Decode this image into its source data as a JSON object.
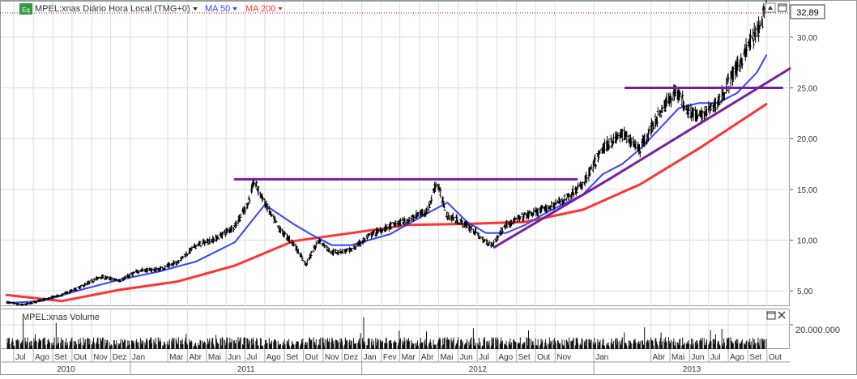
{
  "header": {
    "badge": "Eq",
    "symbol_label": "MPEL:xnas Diário Hora Local (TMG+0)",
    "ma50_label": "MA 50",
    "ma200_label": "MA 200",
    "last_price": "32,89"
  },
  "volume_panel": {
    "label": "MPEL:xnas Volume",
    "axis_tick": "20.000.000"
  },
  "colors": {
    "price": "#000000",
    "ma50": "#3344ff",
    "ma200": "#ff3333",
    "trendline": "#7a1f9c",
    "grid": "#dddddd",
    "last_price_line": "#aa0000"
  },
  "chart_data": [
    {
      "type": "line",
      "title": "MPEL:xnas Diário Hora Local (TMG+0)",
      "ylim": [
        3.5,
        33.5
      ],
      "y_ticks": [
        "5,00",
        "10,00",
        "15,00",
        "20,00",
        "25,00",
        "30,00"
      ],
      "x_months": [
        "Jul",
        "Ago",
        "Set",
        "Out",
        "Nov",
        "Dez",
        "Jan",
        "Mar",
        "Abr",
        "Mai",
        "Jun",
        "Jul",
        "Ago",
        "Set",
        "Out",
        "Nov",
        "Dez",
        "Jan",
        "Fev",
        "Mar",
        "Abr",
        "Mai",
        "Jun",
        "Jul",
        "Ago",
        "Set",
        "Out",
        "Nov",
        "Jan",
        "Abr",
        "Mai",
        "Jun",
        "Jul",
        "Ago",
        "Set",
        "Out"
      ],
      "x_years": [
        "2010",
        "2011",
        "2012",
        "2013"
      ],
      "series": [
        {
          "name": "MPEL:xnas",
          "style": "bars",
          "dates": [
            "2010-06-20",
            "2010-07-15",
            "2010-08-15",
            "2010-09-15",
            "2010-10-15",
            "2010-11-15",
            "2010-12-15",
            "2011-01-15",
            "2011-02-15",
            "2011-03-15",
            "2011-04-15",
            "2011-05-15",
            "2011-06-15",
            "2011-07-05",
            "2011-07-15",
            "2011-08-10",
            "2011-08-25",
            "2011-09-15",
            "2011-10-05",
            "2011-10-25",
            "2011-11-15",
            "2011-12-15",
            "2012-01-15",
            "2012-02-15",
            "2012-03-15",
            "2012-04-15",
            "2012-04-28",
            "2012-05-15",
            "2012-06-05",
            "2012-06-25",
            "2012-07-10",
            "2012-07-25",
            "2012-08-15",
            "2012-09-15",
            "2012-10-15",
            "2012-11-15",
            "2012-12-15",
            "2013-01-15",
            "2013-02-15",
            "2013-03-15",
            "2013-04-15",
            "2013-05-10",
            "2013-05-28",
            "2013-06-15",
            "2013-07-15",
            "2013-08-15",
            "2013-09-05",
            "2013-09-20",
            "2013-09-30"
          ],
          "values": [
            3.9,
            3.6,
            4.1,
            4.6,
            5.4,
            6.4,
            6.0,
            7.0,
            7.1,
            7.8,
            9.5,
            10.1,
            11.4,
            13.5,
            15.8,
            12.6,
            11.0,
            9.7,
            7.6,
            10.0,
            8.8,
            9.0,
            10.5,
            11.4,
            12.0,
            13.0,
            15.8,
            12.4,
            11.8,
            11.0,
            10.0,
            9.5,
            11.5,
            12.4,
            13.0,
            14.0,
            15.5,
            19.0,
            20.5,
            19.0,
            22.5,
            24.8,
            23.0,
            22.0,
            23.5,
            27.0,
            29.5,
            31.0,
            32.9
          ]
        },
        {
          "name": "MA 50",
          "dates": [
            "2010-06-20",
            "2010-08-15",
            "2010-10-15",
            "2010-12-15",
            "2011-02-15",
            "2011-04-15",
            "2011-06-15",
            "2011-08-01",
            "2011-09-15",
            "2011-10-15",
            "2011-11-15",
            "2011-12-15",
            "2012-02-15",
            "2012-04-15",
            "2012-05-15",
            "2012-06-15",
            "2012-07-15",
            "2012-08-15",
            "2012-09-15",
            "2012-10-15",
            "2012-11-15",
            "2012-12-15",
            "2013-01-15",
            "2013-02-15",
            "2013-03-15",
            "2013-04-15",
            "2013-05-15",
            "2013-06-15",
            "2013-07-15",
            "2013-08-15",
            "2013-09-15",
            "2013-09-30"
          ],
          "values": [
            3.8,
            4.0,
            5.1,
            6.1,
            6.9,
            7.9,
            9.8,
            13.5,
            11.6,
            10.5,
            9.5,
            9.5,
            10.6,
            12.7,
            13.7,
            11.8,
            10.7,
            10.7,
            11.5,
            12.6,
            13.6,
            14.5,
            16.5,
            17.5,
            19.0,
            21.0,
            23.0,
            23.5,
            23.5,
            24.5,
            26.5,
            28.2
          ]
        },
        {
          "name": "MA 200",
          "dates": [
            "2010-06-20",
            "2010-09-15",
            "2010-12-15",
            "2011-03-15",
            "2011-06-15",
            "2011-09-15",
            "2011-12-15",
            "2012-03-15",
            "2012-06-15",
            "2012-09-15",
            "2012-12-15",
            "2013-03-15",
            "2013-06-15",
            "2013-09-30"
          ],
          "values": [
            4.6,
            4.0,
            5.1,
            5.9,
            7.5,
            9.9,
            10.7,
            11.5,
            11.6,
            11.8,
            13.0,
            15.5,
            19.0,
            23.4
          ]
        }
      ]
    },
    {
      "type": "bar",
      "title": "MPEL:xnas Volume",
      "ylim": [
        0,
        30000000
      ],
      "y_ticks": [
        "20.000.000"
      ],
      "baseline_volume": 7000000
    }
  ]
}
